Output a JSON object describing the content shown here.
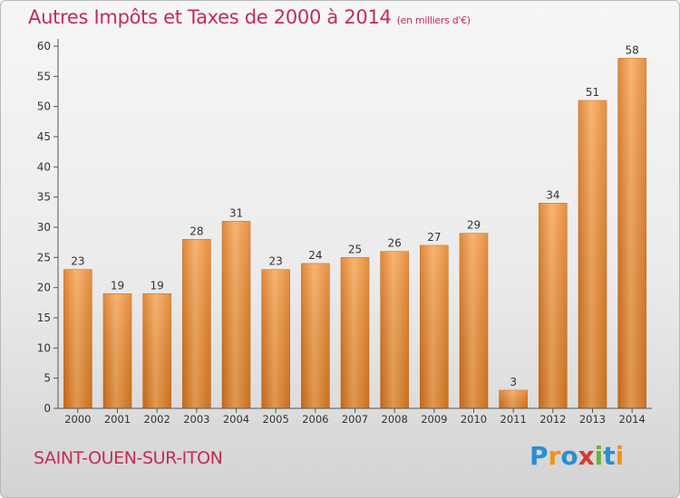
{
  "title": "Autres Impôts et Taxes de 2000 à 2014",
  "subtitle": "(en milliers d'€)",
  "place_name": "SAINT-OUEN-SUR-ITON",
  "logo": {
    "letters": [
      "P",
      "r",
      "o",
      "x",
      "i",
      "t",
      "i"
    ],
    "colors": [
      "#2a8fd0",
      "#f0931e",
      "#2a8fd0",
      "#d63a2f",
      "#6bb43a",
      "#2a8fd0",
      "#f0931e"
    ]
  },
  "colors": {
    "bar": "#f0922f",
    "bar_light": "#f7a85a",
    "bar_dark": "#d8731b",
    "title": "#c42b57"
  },
  "chart_data": {
    "type": "bar",
    "categories": [
      "2000",
      "2001",
      "2002",
      "2003",
      "2004",
      "2005",
      "2006",
      "2007",
      "2008",
      "2009",
      "2010",
      "2011",
      "2012",
      "2013",
      "2014"
    ],
    "values": [
      23,
      19,
      19,
      28,
      31,
      23,
      24,
      25,
      26,
      27,
      29,
      3,
      34,
      51,
      58
    ],
    "data_labels": [
      "23",
      "19",
      "19",
      "28",
      "31",
      "23",
      "24",
      "25",
      "26",
      "27",
      "29",
      "3",
      "34",
      "51",
      "58"
    ],
    "yticks": [
      "0",
      "5",
      "10",
      "15",
      "20",
      "25",
      "30",
      "35",
      "40",
      "45",
      "50",
      "55",
      "60"
    ],
    "ylim": [
      0,
      60
    ],
    "grid": false,
    "legend": "none"
  }
}
